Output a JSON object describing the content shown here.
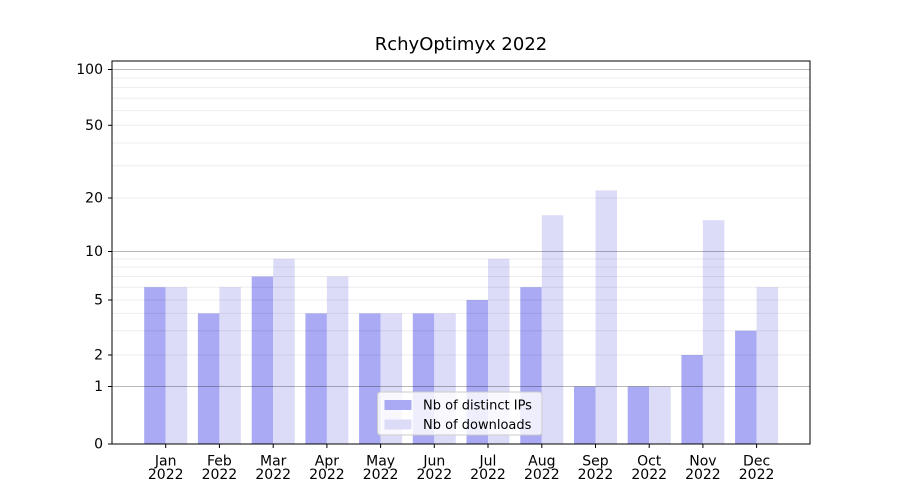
{
  "chart_data": {
    "type": "bar",
    "title": "RchyOptimyx 2022",
    "year_label": "2022",
    "months": [
      "Jan",
      "Feb",
      "Mar",
      "Apr",
      "May",
      "Jun",
      "Jul",
      "Aug",
      "Sep",
      "Oct",
      "Nov",
      "Dec"
    ],
    "series": [
      {
        "name": "Nb of distinct IPs",
        "color": "#a9a9f4",
        "values": [
          6,
          4,
          7,
          4,
          4,
          4,
          5,
          6,
          1,
          1,
          2,
          3
        ]
      },
      {
        "name": "Nb of downloads",
        "color": "#dcdcf8",
        "values": [
          6,
          6,
          9,
          7,
          4,
          4,
          9,
          16,
          22,
          1,
          15,
          6
        ]
      }
    ],
    "y_axis": {
      "scale": "log-like",
      "tick_values": [
        0,
        1,
        2,
        5,
        10,
        20,
        50,
        100
      ],
      "tick_labels": [
        "0",
        "1",
        "2",
        "5",
        "10",
        "20",
        "50",
        "100"
      ],
      "major_grid_values": [
        1,
        10,
        100
      ],
      "minor_grid_values": [
        2,
        3,
        4,
        5,
        6,
        7,
        8,
        9,
        20,
        30,
        40,
        50,
        60,
        70,
        80,
        90
      ],
      "anchors": [
        {
          "v": 0,
          "f": 0.0
        },
        {
          "v": 1,
          "f": 0.15013
        },
        {
          "v": 2,
          "f": 0.23238
        },
        {
          "v": 5,
          "f": 0.37598
        },
        {
          "v": 10,
          "f": 0.50261
        },
        {
          "v": 20,
          "f": 0.6423
        },
        {
          "v": 50,
          "f": 0.83212
        },
        {
          "v": 100,
          "f": 0.97781
        }
      ]
    },
    "legend": {
      "position": "lower center"
    },
    "grid": true
  },
  "colors": {
    "background": "#ffffff",
    "bar_dark": "#a9a9f4",
    "bar_light": "#dcdcf8",
    "major_grid": "rgba(0,0,0,0.28)",
    "minor_grid": "rgba(0,0,0,0.07)",
    "spine": "#000000",
    "tick": "#000000",
    "text": "#000000",
    "legend_bg": "rgba(255,255,255,0.8)",
    "legend_border": "#cccccc"
  }
}
